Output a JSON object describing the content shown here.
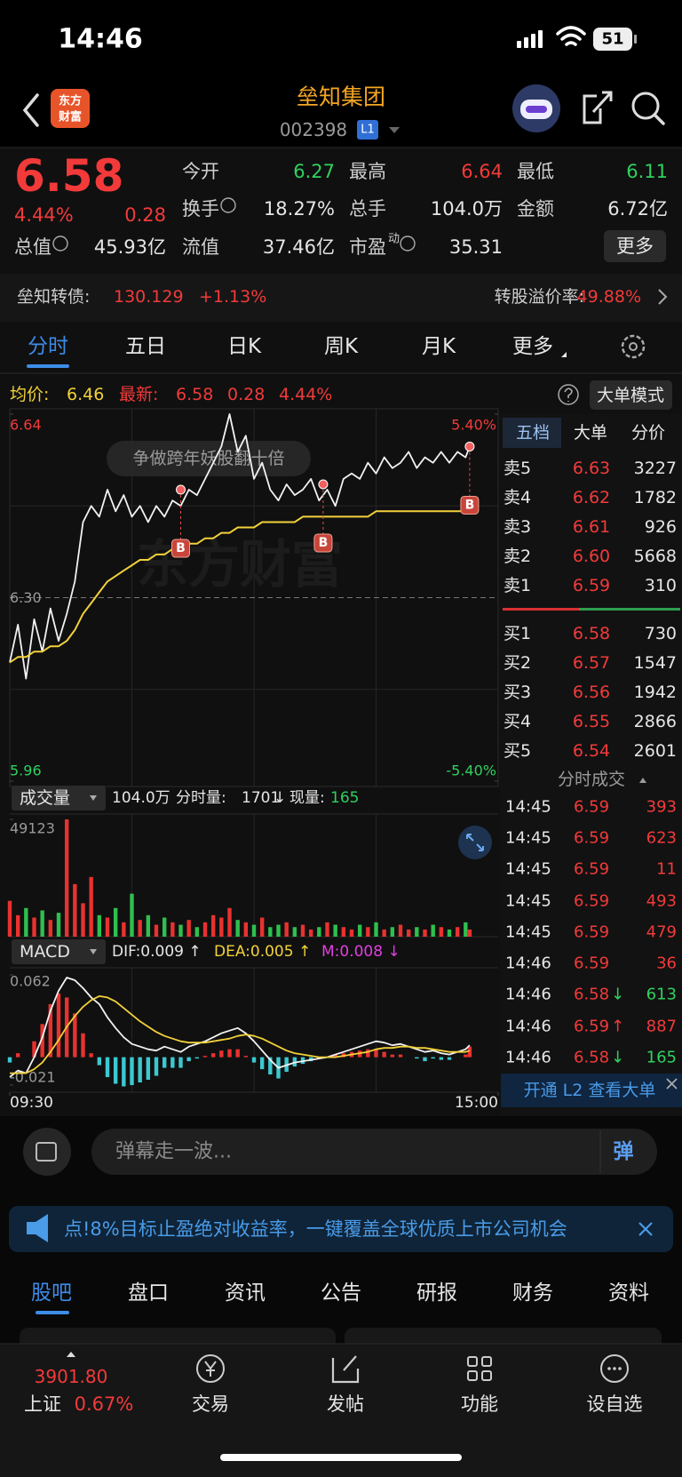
{
  "status": {
    "time": "14:46",
    "battery": "51"
  },
  "header": {
    "logo": [
      "东方",
      "财富"
    ],
    "title": "垒知集团",
    "code": "002398",
    "level": "L1"
  },
  "quote": {
    "price": "6.58",
    "change_pct": "4.44%",
    "change": "0.28",
    "more": "更多",
    "fields": [
      {
        "label": "今开",
        "value": "6.27",
        "color": "#2fd15f"
      },
      {
        "label": "最高",
        "value": "6.64",
        "color": "#f23a3a"
      },
      {
        "label": "最低",
        "value": "6.11",
        "color": "#2fd15f"
      },
      {
        "label": "换手",
        "value": "18.27%",
        "info": true
      },
      {
        "label": "总手",
        "value": "104.0万"
      },
      {
        "label": "金额",
        "value": "6.72亿"
      },
      {
        "label": "总值",
        "value": "45.93亿",
        "info": true
      },
      {
        "label": "流值",
        "value": "37.46亿"
      },
      {
        "label": "市盈",
        "sup": "动",
        "value": "35.31",
        "info": true
      }
    ]
  },
  "bond": {
    "label": "垒知转债:",
    "price": "130.129",
    "change": "+1.13%",
    "premium_label": "转股溢价率:",
    "premium": "49.88%"
  },
  "tabs": [
    "分时",
    "五日",
    "日K",
    "周K",
    "月K",
    "更多"
  ],
  "info": {
    "avg_label": "均价:",
    "avg": "6.46",
    "last_label": "最新:",
    "last": "6.58",
    "change": "0.28",
    "pct": "4.44%",
    "mode": "大单模式"
  },
  "chart": {
    "type": "line",
    "x": [
      0,
      4,
      8,
      12,
      16,
      20,
      24,
      28,
      32,
      36,
      40,
      44,
      48,
      52,
      56,
      60,
      64,
      68,
      72,
      76,
      80,
      84,
      88,
      92,
      96,
      100,
      104,
      108,
      112,
      116,
      120,
      124,
      128,
      132,
      136,
      140,
      144,
      148,
      152,
      156,
      160,
      164,
      168,
      172,
      176,
      180,
      184,
      188,
      192,
      196,
      200,
      204,
      208,
      212,
      216,
      220,
      224,
      226
    ],
    "xlim": [
      0,
      240
    ],
    "ylim": [
      5.96,
      6.64
    ],
    "yticks": [
      6.64,
      {
        "value": 6.3,
        "label": "6.30"
      },
      5.96
    ],
    "y2lim": [
      -5.4,
      5.4
    ],
    "y2ticks": [
      {
        "value": 5.4,
        "label": "5.40%"
      },
      {
        "value": -5.4,
        "label": "-5.40%"
      }
    ],
    "series": [
      {
        "color": "#f2f2f2",
        "values": [
          6.18,
          6.25,
          6.15,
          6.26,
          6.2,
          6.28,
          6.22,
          6.27,
          6.33,
          6.44,
          6.47,
          6.45,
          6.5,
          6.46,
          6.49,
          6.45,
          6.47,
          6.44,
          6.47,
          6.45,
          6.48,
          6.47,
          6.5,
          6.49,
          6.52,
          6.55,
          6.58,
          6.64,
          6.57,
          6.6,
          6.52,
          6.55,
          6.5,
          6.48,
          6.51,
          6.49,
          6.5,
          6.52,
          6.48,
          6.5,
          6.47,
          6.52,
          6.53,
          6.52,
          6.55,
          6.53,
          6.56,
          6.54,
          6.55,
          6.57,
          6.54,
          6.56,
          6.55,
          6.57,
          6.55,
          6.57,
          6.56,
          6.58
        ]
      },
      {
        "color": "#f2d13a",
        "values": [
          6.18,
          6.19,
          6.19,
          6.2,
          6.2,
          6.21,
          6.21,
          6.22,
          6.24,
          6.27,
          6.29,
          6.31,
          6.33,
          6.34,
          6.35,
          6.36,
          6.37,
          6.37,
          6.38,
          6.38,
          6.39,
          6.39,
          6.4,
          6.4,
          6.41,
          6.41,
          6.42,
          6.42,
          6.43,
          6.43,
          6.43,
          6.44,
          6.44,
          6.44,
          6.44,
          6.44,
          6.45,
          6.45,
          6.45,
          6.45,
          6.45,
          6.45,
          6.45,
          6.45,
          6.45,
          6.46,
          6.46,
          6.46,
          6.46,
          6.46,
          6.46,
          6.46,
          6.46,
          6.46,
          6.46,
          6.46,
          6.46,
          6.46
        ]
      }
    ],
    "bubble": "争做跨年妖股翻十倍",
    "watermark": "东方财富",
    "trades": {
      "label": "B",
      "x": [
        84,
        154,
        226
      ],
      "values": [
        6.5,
        6.51,
        6.58
      ]
    }
  },
  "volume": {
    "label": "成交量",
    "total": "104.0万",
    "fenshi_label": "分时量:",
    "fenshi": "1701",
    "arrow": "↓",
    "now_label": "现量:",
    "now": "165",
    "ylim": [
      0,
      49123
    ],
    "yticks": [
      49123
    ],
    "values": [
      15000,
      9000,
      12000,
      8000,
      11000,
      7000,
      10000,
      49123,
      22000,
      14000,
      25000,
      9000,
      8000,
      12000,
      6000,
      18000,
      7000,
      9000,
      5000,
      8000,
      6000,
      5000,
      7000,
      4000,
      6000,
      9000,
      8000,
      12000,
      7000,
      6000,
      5000,
      8000,
      4000,
      5000,
      6000,
      4000,
      5000,
      3000,
      4000,
      6000,
      5000,
      4000,
      3000,
      5000,
      4000,
      6000,
      3000,
      4000,
      5000,
      3000,
      4000,
      3000,
      5000,
      4000,
      3000,
      4000,
      6000,
      3000
    ]
  },
  "macd": {
    "label": "MACD",
    "dif_text": "DIF:0.009 ↑",
    "dea_text": "DEA:0.005 ↑",
    "m_text": "M:0.008 ↓",
    "ylim": [
      -0.021,
      0.062
    ],
    "yticks": [
      0.062,
      -0.021
    ],
    "xticks": [
      {
        "value": 0,
        "label": "09:30"
      },
      {
        "value": 240,
        "label": "15:00"
      }
    ],
    "dif": {
      "color": "#f2f2f2",
      "values": [
        -0.015,
        -0.01,
        -0.012,
        0.0,
        0.015,
        0.035,
        0.05,
        0.06,
        0.058,
        0.052,
        0.045,
        0.04,
        0.03,
        0.022,
        0.015,
        0.01,
        0.008,
        0.006,
        0.005,
        0.008,
        0.006,
        0.004,
        0.008,
        0.01,
        0.012,
        0.015,
        0.018,
        0.02,
        0.022,
        0.018,
        0.012,
        0.005,
        -0.002,
        -0.008,
        -0.006,
        -0.004,
        -0.003,
        -0.002,
        -0.001,
        0.0,
        0.002,
        0.004,
        0.006,
        0.008,
        0.01,
        0.012,
        0.011,
        0.009,
        0.01,
        0.008,
        0.006,
        0.004,
        0.005,
        0.003,
        0.002,
        0.004,
        0.006,
        0.009
      ]
    },
    "dea": {
      "color": "#f2d13a",
      "values": [
        -0.012,
        -0.012,
        -0.012,
        -0.009,
        -0.004,
        0.004,
        0.013,
        0.023,
        0.031,
        0.038,
        0.043,
        0.046,
        0.045,
        0.042,
        0.037,
        0.032,
        0.027,
        0.023,
        0.019,
        0.016,
        0.014,
        0.012,
        0.011,
        0.011,
        0.011,
        0.012,
        0.013,
        0.014,
        0.016,
        0.017,
        0.016,
        0.014,
        0.011,
        0.008,
        0.005,
        0.003,
        0.002,
        0.001,
        0.0,
        0.0,
        0.0,
        0.001,
        0.002,
        0.003,
        0.004,
        0.006,
        0.007,
        0.007,
        0.008,
        0.008,
        0.007,
        0.007,
        0.006,
        0.005,
        0.004,
        0.004,
        0.004,
        0.005
      ]
    },
    "m": {
      "up_color": "#e8322f",
      "down_color": "#3cc8d0",
      "values": [
        -0.004,
        0.003,
        0.0,
        0.012,
        0.025,
        0.04,
        0.048,
        0.045,
        0.033,
        0.018,
        0.003,
        -0.006,
        -0.015,
        -0.02,
        -0.022,
        -0.021,
        -0.019,
        -0.017,
        -0.014,
        -0.008,
        -0.008,
        -0.008,
        -0.003,
        -0.001,
        0.001,
        0.003,
        0.005,
        0.006,
        0.006,
        0.001,
        -0.004,
        -0.009,
        -0.013,
        -0.016,
        -0.011,
        -0.007,
        -0.005,
        -0.003,
        -0.001,
        0.0,
        0.002,
        0.003,
        0.004,
        0.005,
        0.006,
        0.006,
        0.004,
        0.002,
        0.002,
        0.0,
        -0.001,
        -0.003,
        -0.001,
        -0.002,
        -0.002,
        0.0,
        0.002,
        0.008
      ]
    }
  },
  "orderbook": {
    "tabs": [
      "五档",
      "大单",
      "分价"
    ],
    "asks": [
      {
        "label": "卖5",
        "price": "6.63",
        "vol": "3227"
      },
      {
        "label": "卖4",
        "price": "6.62",
        "vol": "1782"
      },
      {
        "label": "卖3",
        "price": "6.61",
        "vol": "926"
      },
      {
        "label": "卖2",
        "price": "6.60",
        "vol": "5668"
      },
      {
        "label": "卖1",
        "price": "6.59",
        "vol": "310"
      }
    ],
    "bids": [
      {
        "label": "买1",
        "price": "6.58",
        "vol": "730"
      },
      {
        "label": "买2",
        "price": "6.57",
        "vol": "1547"
      },
      {
        "label": "买3",
        "price": "6.56",
        "vol": "1942"
      },
      {
        "label": "买4",
        "price": "6.55",
        "vol": "2866"
      },
      {
        "label": "买5",
        "price": "6.54",
        "vol": "2601"
      }
    ],
    "trades_title": "分时成交",
    "ticks": [
      {
        "time": "14:45",
        "price": "6.59",
        "vol": "393",
        "color": "#f23a3a"
      },
      {
        "time": "14:45",
        "price": "6.59",
        "vol": "623",
        "color": "#f23a3a"
      },
      {
        "time": "14:45",
        "price": "6.59",
        "vol": "11",
        "color": "#f23a3a"
      },
      {
        "time": "14:45",
        "price": "6.59",
        "vol": "493",
        "color": "#f23a3a"
      },
      {
        "time": "14:45",
        "price": "6.59",
        "vol": "479",
        "color": "#f23a3a"
      },
      {
        "time": "14:46",
        "price": "6.59",
        "vol": "36",
        "color": "#f23a3a"
      },
      {
        "time": "14:46",
        "price": "6.58",
        "arrow": "↓",
        "vol": "613",
        "color": "#2fd15f"
      },
      {
        "time": "14:46",
        "price": "6.59",
        "arrow": "↑",
        "vol": "887",
        "color": "#f23a3a"
      },
      {
        "time": "14:46",
        "price": "6.58",
        "arrow": "↓",
        "vol": "165",
        "color": "#2fd15f"
      }
    ],
    "l2": "开通 L2 查看大单"
  },
  "comment": {
    "placeholder": "弹幕走一波...",
    "button": "弹"
  },
  "banner": "点!8%目标止盈绝对收益率，一键覆盖全球优质上市公司机会",
  "section_tabs": [
    "股吧",
    "盘口",
    "资讯",
    "公告",
    "研报",
    "财务",
    "资料"
  ],
  "nav": {
    "index_value": "3901.80",
    "index_name": "上证",
    "index_pct": "0.67%",
    "items": [
      "交易",
      "发帖",
      "功能",
      "设自选"
    ]
  }
}
